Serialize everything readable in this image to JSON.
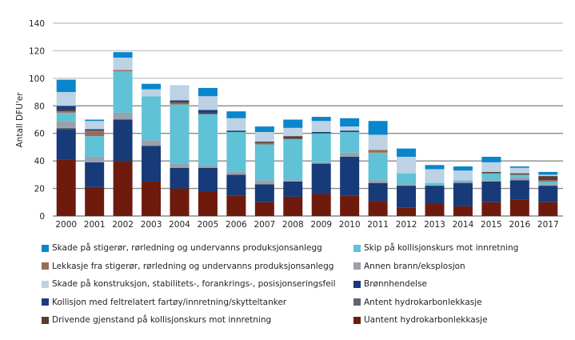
{
  "chart_data": {
    "type": "bar",
    "stacked": true,
    "title": "",
    "xlabel": "",
    "ylabel": "Antall DFU'er",
    "ylim": [
      0,
      140
    ],
    "yticks": [
      0,
      20,
      40,
      60,
      80,
      100,
      120,
      140
    ],
    "grid": true,
    "legend_position": "bottom",
    "categories": [
      "2000",
      "2001",
      "2002",
      "2003",
      "2004",
      "2005",
      "2006",
      "2007",
      "2008",
      "2009",
      "2010",
      "2011",
      "2012",
      "2013",
      "2014",
      "2015",
      "2016",
      "2017"
    ],
    "series": [
      {
        "name": "Uantent hydrokarbonlekkasje",
        "color": "#6e1b0e",
        "values": [
          41,
          21,
          40,
          25,
          20,
          18,
          15,
          10,
          14,
          16,
          15,
          11,
          6,
          9,
          7,
          10,
          12,
          10
        ]
      },
      {
        "name": "Brønnhendelse",
        "color": "#173a78",
        "values": [
          22,
          18,
          30,
          26,
          15,
          17,
          15,
          13,
          11,
          22,
          28,
          13,
          16,
          13,
          17,
          15,
          14,
          12
        ]
      },
      {
        "name": "Antent hydrokarbonlekkasje",
        "color": "#5e6670",
        "values": [
          1,
          0,
          0,
          0,
          0,
          0,
          0,
          0,
          0,
          0,
          0,
          0,
          0,
          0,
          0,
          0,
          0,
          0
        ]
      },
      {
        "name": "Annen brann/eksplosjon",
        "color": "#99a1aa",
        "values": [
          5,
          4,
          5,
          4,
          3,
          2,
          2,
          3,
          1,
          1,
          3,
          2,
          1,
          0,
          1,
          1,
          2,
          1
        ]
      },
      {
        "name": "Skip på kollisjonskurs mot innretning",
        "color": "#5fc2d6",
        "values": [
          6,
          15,
          30,
          32,
          43,
          37,
          29,
          26,
          30,
          21,
          15,
          20,
          8,
          2,
          1,
          5,
          2,
          2
        ]
      },
      {
        "name": "Lekkasje fra stigerør, rørledning og undervanns produksjonsanlegg",
        "color": "#9c6b58",
        "values": [
          1,
          4,
          1,
          0,
          1,
          0,
          0,
          1,
          0,
          0,
          0,
          2,
          0,
          0,
          0,
          0,
          0,
          1
        ]
      },
      {
        "name": "Drivende gjenstand på kollisjonskurs mot innretning",
        "color": "#5a3d33",
        "values": [
          1,
          0,
          0,
          0,
          1,
          1,
          0,
          1,
          2,
          0,
          0,
          0,
          0,
          0,
          0,
          1,
          1,
          3
        ]
      },
      {
        "name": "Kollisjon med feltrelatert fartøy/innretning/skytteltanker",
        "color": "#1c3c7a",
        "values": [
          3,
          1,
          0,
          0,
          1,
          2,
          1,
          0,
          0,
          1,
          1,
          0,
          0,
          0,
          0,
          0,
          0,
          0
        ]
      },
      {
        "name": "Skade på konstruksjon, stabilitets-, forankrings-, posisjonseringsfeil",
        "color": "#bdd2e4",
        "values": [
          10,
          6,
          9,
          5,
          11,
          10,
          9,
          7,
          6,
          8,
          3,
          11,
          12,
          10,
          7,
          7,
          4,
          1
        ]
      },
      {
        "name": "Skade på stigerør, rørledning og undervanns produksjonsanlegg",
        "color": "#0a86cc",
        "values": [
          9,
          1,
          4,
          4,
          0,
          6,
          5,
          4,
          6,
          3,
          6,
          10,
          6,
          3,
          3,
          4,
          1,
          2
        ]
      }
    ],
    "legend_entries": [
      {
        "name": "Skade på stigerør, rørledning og undervanns produksjonsanlegg",
        "color": "#0a86cc"
      },
      {
        "name": "Skip på kollisjonskurs mot innretning",
        "color": "#5fc2d6"
      },
      {
        "name": "Lekkasje fra stigerør, rørledning og undervanns produksjonsanlegg",
        "color": "#9c6b58"
      },
      {
        "name": "Annen brann/eksplosjon",
        "color": "#99a1aa"
      },
      {
        "name": "Skade på konstruksjon, stabilitets-, forankrings-, posisjonseringsfeil",
        "color": "#bdd2e4"
      },
      {
        "name": "Brønnhendelse",
        "color": "#173a78"
      },
      {
        "name": "Kollisjon med feltrelatert fartøy/innretning/skytteltanker",
        "color": "#1c3c7a"
      },
      {
        "name": "Antent hydrokarbonlekkasje",
        "color": "#5e6670"
      },
      {
        "name": "Drivende gjenstand på kollisjonskurs mot innretning",
        "color": "#5a3d33"
      },
      {
        "name": "Uantent hydrokarbonlekkasje",
        "color": "#6e1b0e"
      }
    ]
  }
}
